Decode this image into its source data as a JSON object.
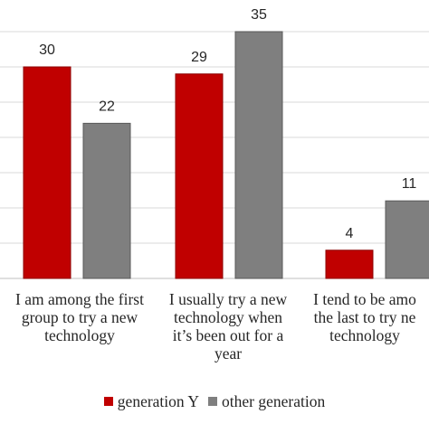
{
  "chart_data": {
    "type": "bar",
    "categories": [
      "I am among the first\ngroup to try a new\ntechnology",
      "I usually try a new\ntechnology when\nit’s been out for a\nyear",
      "I tend to be amo\nthe last to try ne\ntechnology"
    ],
    "series": [
      {
        "name": "generation Y",
        "values": [
          30,
          29,
          4
        ],
        "color": "#c00000"
      },
      {
        "name": "other generation",
        "values": [
          22,
          35,
          11
        ],
        "color": "#7f7f7f"
      }
    ],
    "ylim": [
      0,
      40
    ],
    "grid": true,
    "legend_position": "bottom"
  }
}
